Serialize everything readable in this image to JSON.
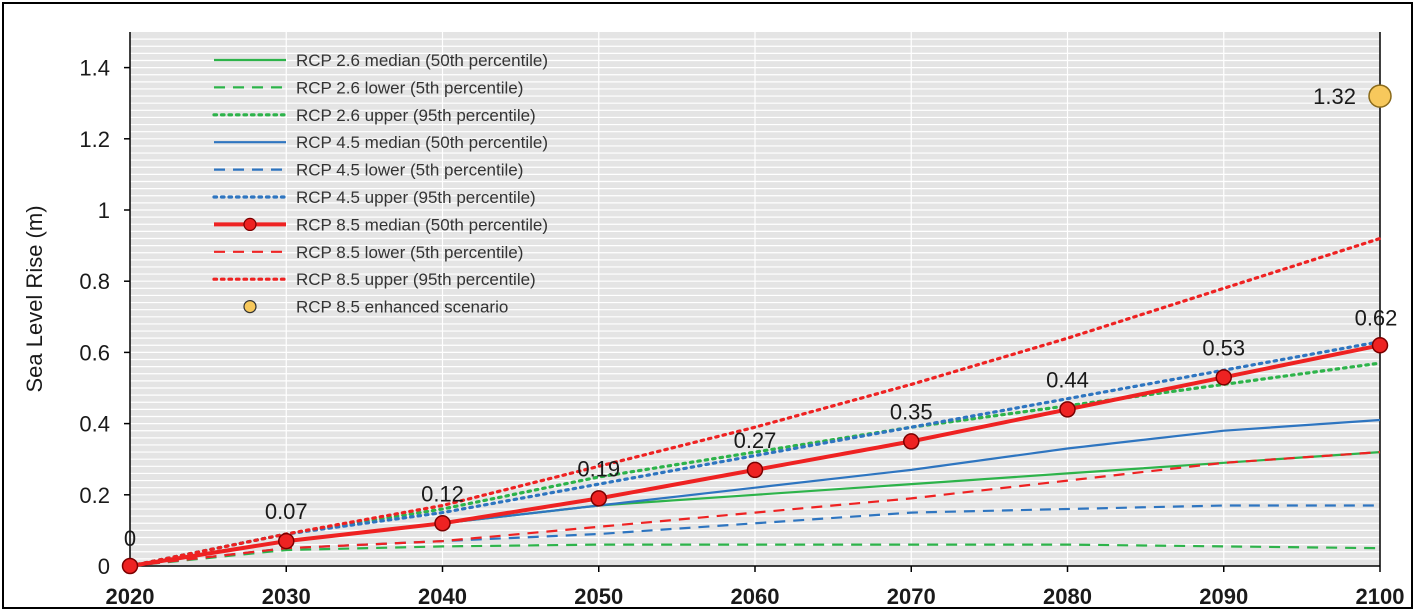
{
  "chart_data": {
    "type": "line",
    "title": "",
    "xlabel": "",
    "ylabel": "Sea Level Rise (m)",
    "x": [
      2020,
      2030,
      2040,
      2050,
      2060,
      2070,
      2080,
      2090,
      2100
    ],
    "xlim": [
      2020,
      2100
    ],
    "ylim": [
      0,
      1.5
    ],
    "x_ticks": [
      "2020",
      "2030",
      "2040",
      "2050",
      "2060",
      "2070",
      "2080",
      "2090",
      "2100"
    ],
    "y_ticks": [
      "0",
      "0.2",
      "0.4",
      "0.6",
      "0.8",
      "1",
      "1.2",
      "1.4"
    ],
    "grid": true,
    "legend_position": "top-left",
    "series": [
      {
        "name": "RCP 2.6 median (50th percentile)",
        "color": "#2db34a",
        "style": "solid",
        "values": [
          0,
          0.07,
          0.12,
          0.17,
          0.2,
          0.23,
          0.26,
          0.29,
          0.32
        ]
      },
      {
        "name": "RCP 2.6 lower (5th percentile)",
        "color": "#2db34a",
        "style": "dashed",
        "values": [
          0,
          0.045,
          0.055,
          0.06,
          0.06,
          0.06,
          0.06,
          0.055,
          0.05
        ]
      },
      {
        "name": "RCP 2.6 upper (95th percentile)",
        "color": "#2db34a",
        "style": "dotted",
        "values": [
          0,
          0.09,
          0.16,
          0.25,
          0.32,
          0.39,
          0.45,
          0.51,
          0.57
        ]
      },
      {
        "name": "RCP 4.5 median (50th percentile)",
        "color": "#2e75c0",
        "style": "solid",
        "values": [
          0,
          0.07,
          0.12,
          0.17,
          0.22,
          0.27,
          0.33,
          0.38,
          0.41
        ]
      },
      {
        "name": "RCP 4.5 lower (5th percentile)",
        "color": "#2e75c0",
        "style": "dashed",
        "values": [
          0,
          0.05,
          0.07,
          0.09,
          0.12,
          0.15,
          0.16,
          0.17,
          0.17
        ]
      },
      {
        "name": "RCP 4.5 upper (95th percentile)",
        "color": "#2e75c0",
        "style": "dotted",
        "values": [
          0,
          0.09,
          0.15,
          0.23,
          0.31,
          0.39,
          0.47,
          0.55,
          0.63
        ]
      },
      {
        "name": "RCP 8.5 median (50th percentile)",
        "color": "#ee2222",
        "style": "solid-markers",
        "values": [
          0,
          0.07,
          0.12,
          0.19,
          0.27,
          0.35,
          0.44,
          0.53,
          0.62
        ]
      },
      {
        "name": "RCP 8.5 lower (5th percentile)",
        "color": "#ee2222",
        "style": "dashed",
        "values": [
          0,
          0.05,
          0.07,
          0.11,
          0.15,
          0.19,
          0.24,
          0.29,
          0.32
        ]
      },
      {
        "name": "RCP 8.5 upper (95th percentile)",
        "color": "#ee2222",
        "style": "dotted",
        "values": [
          0,
          0.09,
          0.17,
          0.28,
          0.39,
          0.51,
          0.64,
          0.78,
          0.92
        ]
      },
      {
        "name": "RCP 8.5 enhanced scenario",
        "color": "#f7c85c",
        "style": "marker",
        "points": [
          {
            "x": 2100,
            "y": 1.32
          }
        ]
      }
    ],
    "data_labels": [
      {
        "x": 2020,
        "y": 0,
        "text": "0"
      },
      {
        "x": 2030,
        "y": 0.07,
        "text": "0.07"
      },
      {
        "x": 2040,
        "y": 0.12,
        "text": "0.12"
      },
      {
        "x": 2050,
        "y": 0.19,
        "text": "0.19"
      },
      {
        "x": 2060,
        "y": 0.27,
        "text": "0.27"
      },
      {
        "x": 2070,
        "y": 0.35,
        "text": "0.35"
      },
      {
        "x": 2080,
        "y": 0.44,
        "text": "0.44"
      },
      {
        "x": 2090,
        "y": 0.53,
        "text": "0.53"
      },
      {
        "x": 2100,
        "y": 0.62,
        "text": "0.62"
      },
      {
        "x": 2100,
        "y": 1.32,
        "text": "1.32"
      }
    ]
  }
}
